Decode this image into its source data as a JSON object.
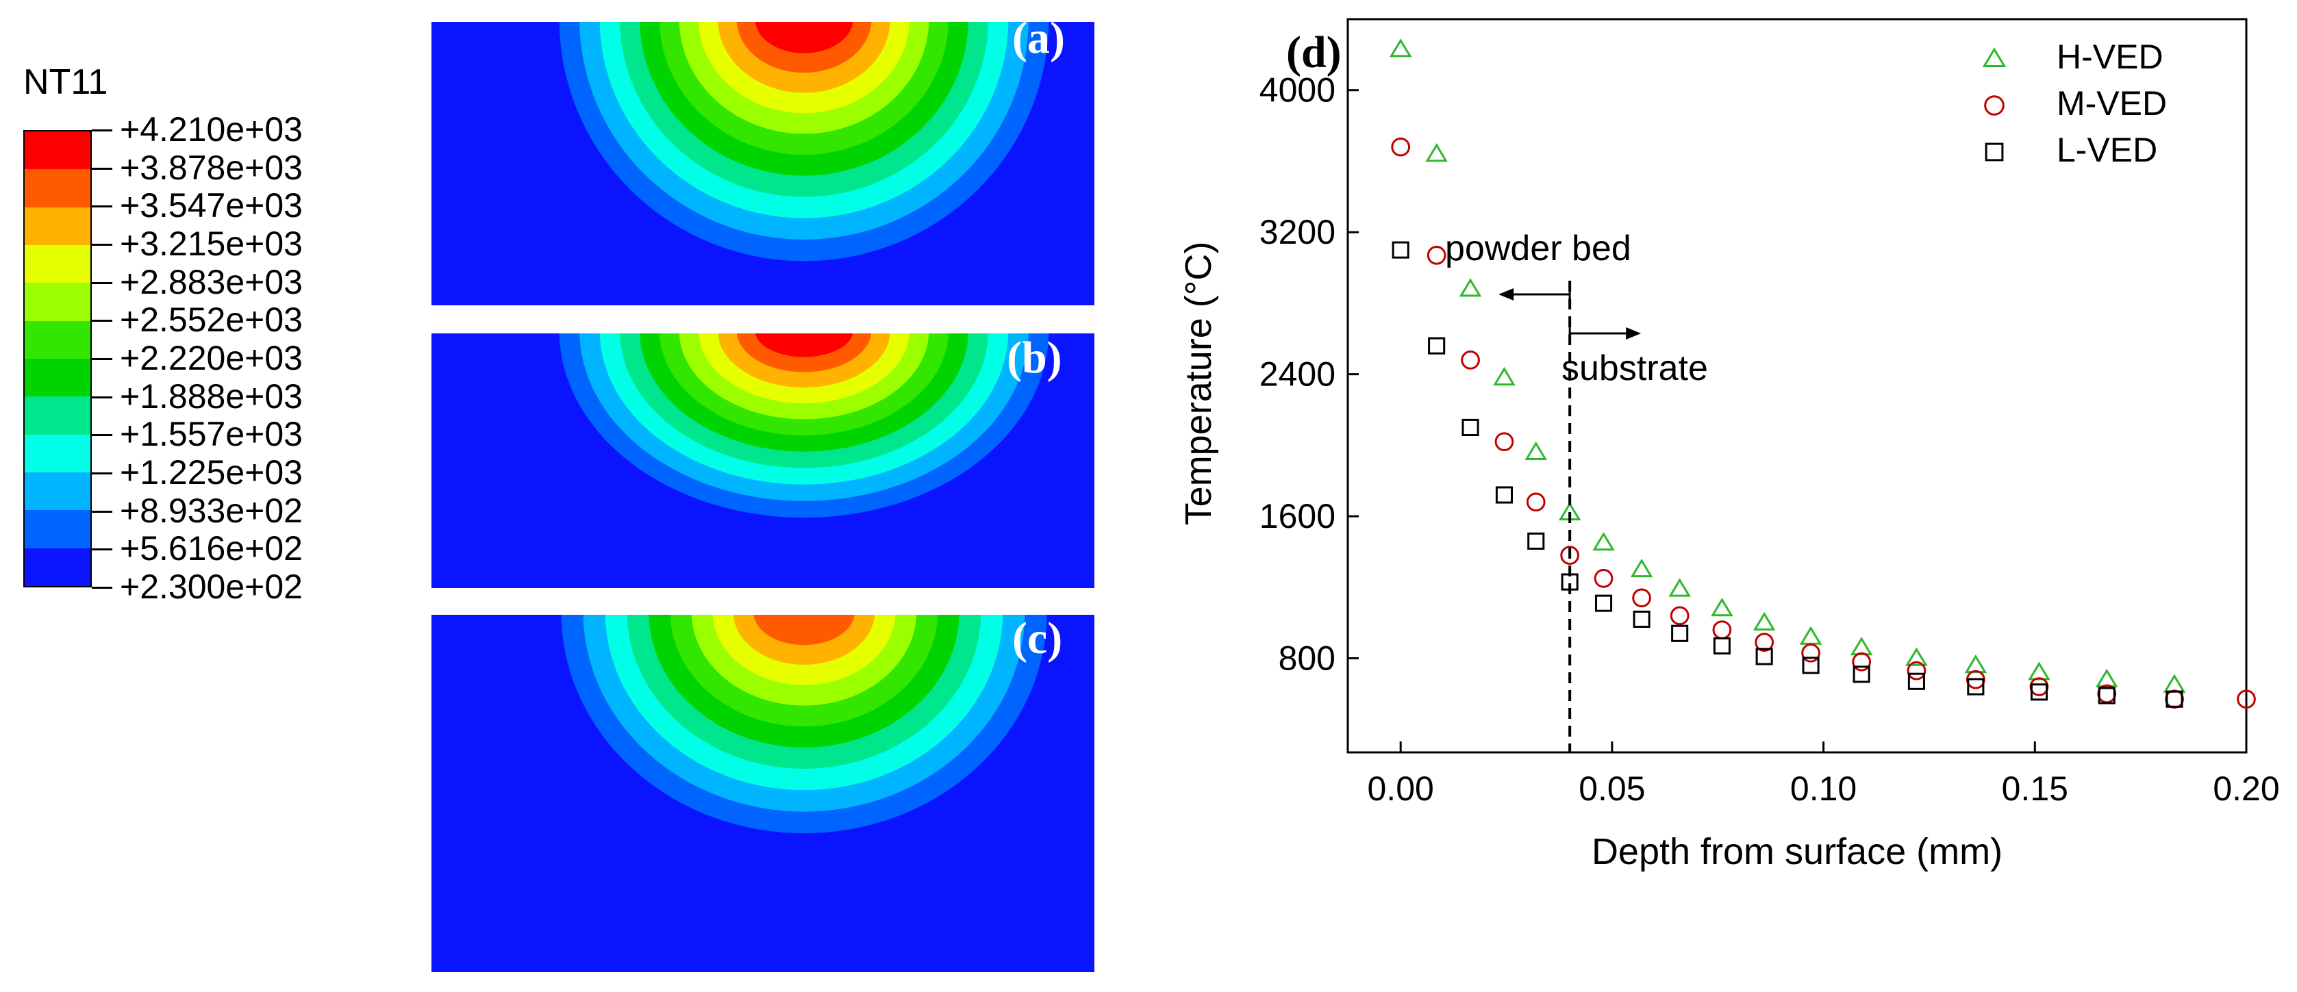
{
  "legend": {
    "title": "NT11",
    "colors": [
      "#ff0000",
      "#ff5a00",
      "#ffb300",
      "#e6ff00",
      "#9cff00",
      "#32e600",
      "#00d400",
      "#00e68c",
      "#00ffe6",
      "#00b4ff",
      "#0064ff",
      "#0a14ff"
    ],
    "labels": [
      "+4.210e+03",
      "+3.878e+03",
      "+3.547e+03",
      "+3.215e+03",
      "+2.883e+03",
      "+2.552e+03",
      "+2.220e+03",
      "+1.888e+03",
      "+1.557e+03",
      "+1.225e+03",
      "+8.933e+02",
      "+5.616e+02",
      "+2.300e+02"
    ]
  },
  "panels": [
    {
      "letter": "(a)",
      "max_level": 12
    },
    {
      "letter": "(b)",
      "max_level": 12
    },
    {
      "letter": "(c)",
      "max_level": 11
    }
  ],
  "chart_data": {
    "type": "scatter",
    "panel_label": "(d)",
    "xlabel": "Depth from surface (mm)",
    "ylabel": "Temperature (°C)",
    "xlim": [
      -0.0125,
      0.2
    ],
    "ylim": [
      270,
      4400
    ],
    "xticks": [
      "0.00",
      "0.05",
      "0.10",
      "0.15",
      "0.20"
    ],
    "xtick_values": [
      0.0,
      0.05,
      0.1,
      0.15,
      0.2
    ],
    "yticks": [
      "800",
      "1600",
      "2400",
      "3200",
      "4000"
    ],
    "ytick_values": [
      800,
      1600,
      2400,
      3200,
      4000
    ],
    "series": [
      {
        "name": "H-VED",
        "marker": "triangle",
        "color": "#2db82d",
        "x": [
          0.0,
          0.0085,
          0.0165,
          0.0245,
          0.032,
          0.04,
          0.048,
          0.057,
          0.066,
          0.076,
          0.086,
          0.097,
          0.109,
          0.122,
          0.136,
          0.151,
          0.167,
          0.183
        ],
        "y": [
          4230,
          3640,
          2880,
          2380,
          1960,
          1620,
          1450,
          1300,
          1190,
          1080,
          1000,
          920,
          860,
          800,
          760,
          720,
          680,
          650
        ]
      },
      {
        "name": "M-VED",
        "marker": "circle",
        "color": "#c00000",
        "x": [
          0.0,
          0.0085,
          0.0165,
          0.0245,
          0.032,
          0.04,
          0.048,
          0.057,
          0.066,
          0.076,
          0.086,
          0.097,
          0.109,
          0.122,
          0.136,
          0.151,
          0.167,
          0.183,
          0.2
        ],
        "y": [
          3680,
          3070,
          2480,
          2020,
          1680,
          1380,
          1250,
          1140,
          1040,
          960,
          890,
          830,
          780,
          730,
          680,
          640,
          600,
          570,
          570
        ]
      },
      {
        "name": "L-VED",
        "marker": "square",
        "color": "#000000",
        "x": [
          0.0,
          0.0085,
          0.0165,
          0.0245,
          0.032,
          0.04,
          0.048,
          0.057,
          0.066,
          0.076,
          0.086,
          0.097,
          0.109,
          0.122,
          0.136,
          0.151,
          0.167,
          0.183
        ],
        "y": [
          3100,
          2560,
          2100,
          1720,
          1460,
          1230,
          1110,
          1020,
          940,
          870,
          810,
          760,
          710,
          670,
          640,
          610,
          590,
          570
        ]
      }
    ],
    "annotations": {
      "boundary_x": 0.04,
      "powder_bed": "powder bed",
      "substrate": "substrate"
    }
  }
}
